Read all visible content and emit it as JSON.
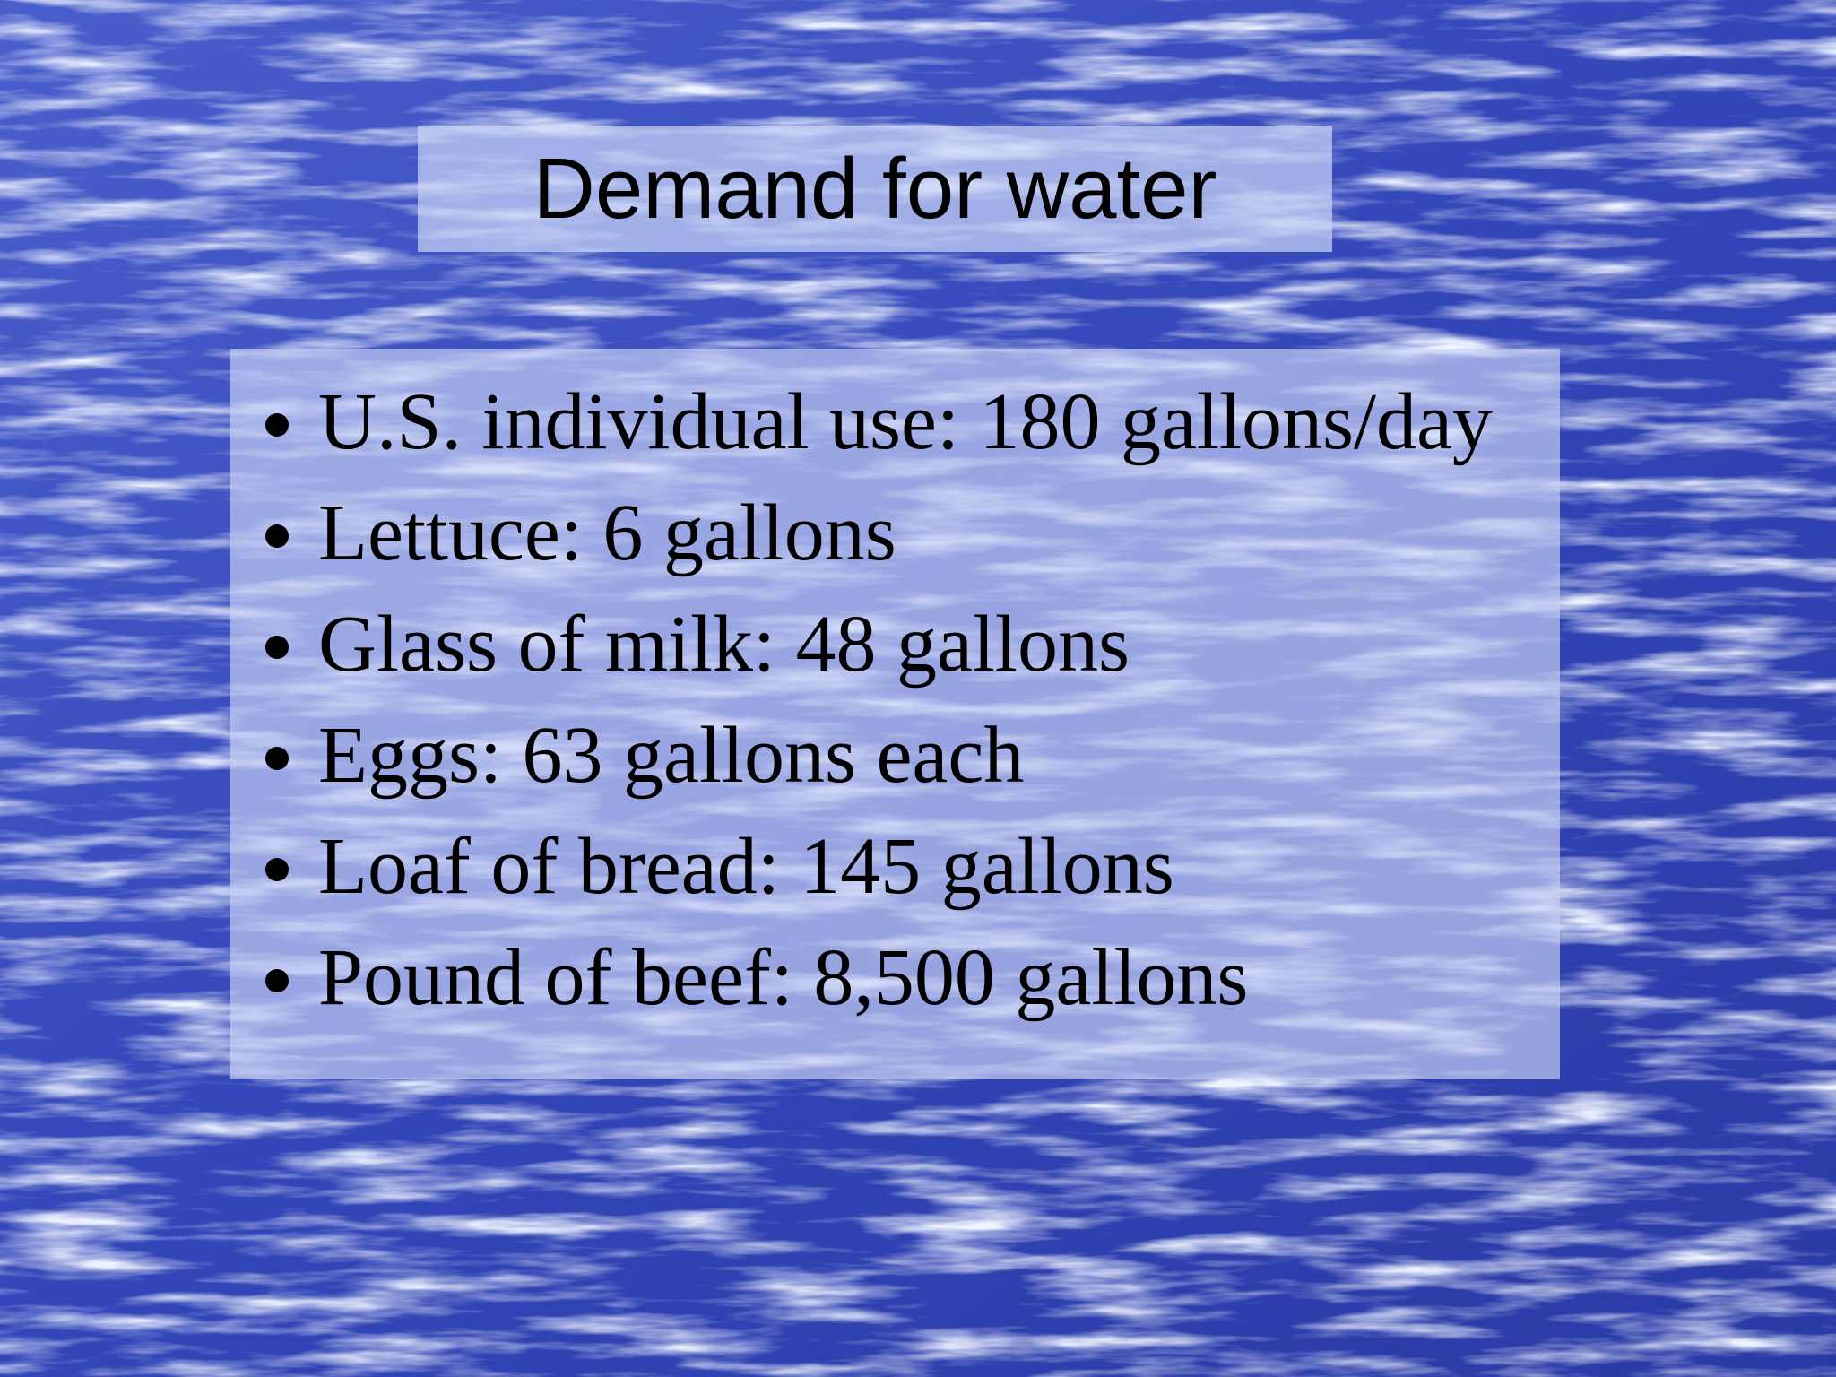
{
  "slide": {
    "title": "Demand for water",
    "bullets": [
      "U.S. individual use: 180 gallons/day",
      "Lettuce: 6 gallons",
      "Glass of milk: 48 gallons",
      "Eggs: 63 gallons each",
      "Loaf of bread: 145 gallons",
      "Pound of beef: 8,500 gallons"
    ]
  }
}
